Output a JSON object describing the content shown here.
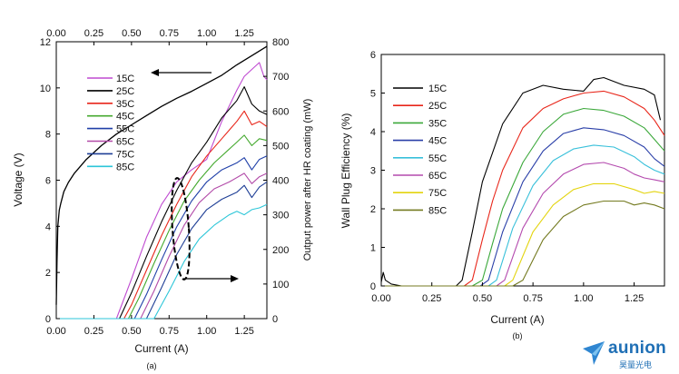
{
  "brand": {
    "logo_text": "aunion",
    "logo_sub": "昊量光电"
  },
  "colors": {
    "15C": "#bf4ad1",
    "25C": "#000000",
    "35C": "#e8261a",
    "45C": "#44a92e",
    "55C": "#1f3fa8",
    "65C": "#b24aa8",
    "75C": "#1f3f96",
    "85C": "#2cc6d8",
    "b_15C": "#000000",
    "b_25C": "#e8261a",
    "b_35C": "#3ba83a",
    "b_45C": "#2a3fa8",
    "b_55C": "#39c0da",
    "b_65C": "#b44aae",
    "b_75C": "#e3d40e",
    "b_85C": "#747a20"
  },
  "chart_data": [
    {
      "id": "a",
      "type": "line",
      "caption": "(a)",
      "xlabel": "Current (A)",
      "ylabel": "Voltage (V)",
      "y2label": "Output power after HR coating (mW)",
      "xlim": [
        0,
        1.4
      ],
      "ylim": [
        0,
        12
      ],
      "y2lim": [
        0,
        800
      ],
      "xticks": [
        "0.00",
        "0.25",
        "0.50",
        "0.75",
        "1.00",
        "1.25"
      ],
      "x_top_ticks": [
        "0.00",
        "0.25",
        "0.50",
        "0.75",
        "1.00",
        "1.25"
      ],
      "yticks": [
        "0",
        "2",
        "4",
        "6",
        "8",
        "10",
        "12"
      ],
      "y2ticks": [
        "0",
        "100",
        "200",
        "300",
        "400",
        "500",
        "600",
        "700",
        "800"
      ],
      "legend": [
        "15C",
        "25C",
        "35C",
        "45C",
        "55C",
        "65C",
        "75C",
        "85C"
      ],
      "voltage_series": {
        "name": "25C",
        "x": [
          0,
          0.005,
          0.01,
          0.02,
          0.03,
          0.05,
          0.08,
          0.12,
          0.2,
          0.3,
          0.4,
          0.5,
          0.6,
          0.7,
          0.8,
          0.9,
          1.0,
          1.1,
          1.2,
          1.3,
          1.35,
          1.4
        ],
        "y": [
          0.6,
          2.5,
          4.0,
          4.7,
          5.0,
          5.5,
          5.9,
          6.3,
          6.9,
          7.5,
          8.0,
          8.4,
          8.8,
          9.2,
          9.55,
          9.85,
          10.2,
          10.55,
          11.0,
          11.4,
          11.6,
          11.8
        ]
      },
      "power_series": [
        {
          "name": "15C",
          "x": [
            0,
            0.4,
            0.5,
            0.6,
            0.7,
            0.8,
            0.9,
            1.0,
            1.1,
            1.2,
            1.25,
            1.3,
            1.35,
            1.38,
            1.4
          ],
          "y": [
            0,
            0,
            115,
            235,
            330,
            395,
            430,
            460,
            570,
            660,
            700,
            720,
            740,
            700,
            690
          ]
        },
        {
          "name": "25C",
          "x": [
            0,
            0.42,
            0.5,
            0.6,
            0.7,
            0.8,
            0.9,
            1.0,
            1.1,
            1.2,
            1.25,
            1.3,
            1.35,
            1.4
          ],
          "y": [
            0,
            0,
            75,
            180,
            280,
            370,
            450,
            510,
            580,
            630,
            670,
            620,
            600,
            590
          ]
        },
        {
          "name": "35C",
          "x": [
            0,
            0.45,
            0.5,
            0.6,
            0.7,
            0.8,
            0.9,
            1.0,
            1.1,
            1.2,
            1.25,
            1.3,
            1.35,
            1.4
          ],
          "y": [
            0,
            0,
            40,
            140,
            240,
            330,
            410,
            470,
            520,
            570,
            600,
            560,
            570,
            555
          ]
        },
        {
          "name": "45C",
          "x": [
            0,
            0.48,
            0.55,
            0.65,
            0.75,
            0.85,
            0.95,
            1.05,
            1.15,
            1.2,
            1.25,
            1.3,
            1.35,
            1.4
          ],
          "y": [
            0,
            0,
            60,
            160,
            255,
            340,
            400,
            450,
            490,
            510,
            530,
            500,
            520,
            515
          ]
        },
        {
          "name": "55C",
          "x": [
            0,
            0.52,
            0.6,
            0.7,
            0.8,
            0.9,
            1.0,
            1.1,
            1.2,
            1.25,
            1.3,
            1.35,
            1.4
          ],
          "y": [
            0,
            0,
            70,
            170,
            265,
            340,
            395,
            430,
            450,
            465,
            430,
            460,
            470
          ]
        },
        {
          "name": "65C",
          "x": [
            0,
            0.56,
            0.65,
            0.75,
            0.85,
            0.95,
            1.05,
            1.15,
            1.25,
            1.3,
            1.35,
            1.4
          ],
          "y": [
            0,
            0,
            80,
            180,
            270,
            335,
            375,
            395,
            420,
            390,
            410,
            420
          ]
        },
        {
          "name": "75C",
          "x": [
            0,
            0.6,
            0.7,
            0.8,
            0.9,
            1.0,
            1.1,
            1.2,
            1.25,
            1.3,
            1.35,
            1.4
          ],
          "y": [
            0,
            0,
            90,
            185,
            260,
            315,
            345,
            365,
            385,
            350,
            380,
            395
          ]
        },
        {
          "name": "85C",
          "x": [
            0,
            0.65,
            0.75,
            0.85,
            0.95,
            1.05,
            1.15,
            1.2,
            1.25,
            1.3,
            1.35,
            1.4
          ],
          "y": [
            0,
            0,
            80,
            165,
            230,
            270,
            300,
            310,
            300,
            315,
            320,
            330
          ]
        }
      ]
    },
    {
      "id": "b",
      "type": "line",
      "caption": "(b)",
      "xlabel": "Current (A)",
      "ylabel": "Wall Plug Efficiency (%)",
      "xlim": [
        0,
        1.4
      ],
      "ylim": [
        0,
        6
      ],
      "xticks": [
        "0.00",
        "0.25",
        "0.50",
        "0.75",
        "1.00",
        "1.25"
      ],
      "yticks": [
        "0",
        "1",
        "2",
        "3",
        "4",
        "5",
        "6"
      ],
      "legend": [
        "15C",
        "25C",
        "35C",
        "45C",
        "55C",
        "65C",
        "75C",
        "85C"
      ],
      "series": [
        {
          "name": "15C",
          "x": [
            0,
            0.01,
            0.02,
            0.05,
            0.1,
            0.37,
            0.4,
            0.45,
            0.5,
            0.6,
            0.7,
            0.8,
            0.9,
            1.0,
            1.05,
            1.1,
            1.2,
            1.3,
            1.35,
            1.38
          ],
          "y": [
            0.1,
            0.35,
            0.15,
            0.05,
            0.0,
            0.0,
            0.15,
            1.4,
            2.7,
            4.2,
            5.0,
            5.2,
            5.1,
            5.05,
            5.35,
            5.4,
            5.2,
            5.1,
            4.95,
            4.3
          ]
        },
        {
          "name": "25C",
          "x": [
            0,
            0.41,
            0.45,
            0.5,
            0.55,
            0.6,
            0.7,
            0.8,
            0.9,
            1.0,
            1.1,
            1.2,
            1.3,
            1.35,
            1.4
          ],
          "y": [
            0,
            0,
            0.15,
            1.2,
            2.2,
            3.0,
            4.1,
            4.6,
            4.85,
            5.0,
            5.05,
            4.9,
            4.6,
            4.3,
            3.9
          ]
        },
        {
          "name": "35C",
          "x": [
            0,
            0.45,
            0.5,
            0.55,
            0.6,
            0.7,
            0.8,
            0.9,
            1.0,
            1.1,
            1.2,
            1.3,
            1.35,
            1.4
          ],
          "y": [
            0,
            0,
            0.15,
            1.1,
            2.0,
            3.2,
            4.0,
            4.45,
            4.6,
            4.55,
            4.4,
            4.1,
            3.8,
            3.5
          ]
        },
        {
          "name": "45C",
          "x": [
            0,
            0.49,
            0.53,
            0.6,
            0.7,
            0.8,
            0.9,
            1.0,
            1.1,
            1.2,
            1.3,
            1.35,
            1.4
          ],
          "y": [
            0,
            0,
            0.15,
            1.4,
            2.7,
            3.5,
            3.95,
            4.1,
            4.05,
            3.9,
            3.6,
            3.3,
            3.1
          ]
        },
        {
          "name": "55C",
          "x": [
            0,
            0.53,
            0.57,
            0.65,
            0.75,
            0.85,
            0.95,
            1.05,
            1.15,
            1.25,
            1.3,
            1.35,
            1.4
          ],
          "y": [
            0,
            0,
            0.15,
            1.5,
            2.6,
            3.25,
            3.55,
            3.65,
            3.6,
            3.35,
            3.15,
            3.0,
            2.9
          ]
        },
        {
          "name": "65C",
          "x": [
            0,
            0.57,
            0.61,
            0.7,
            0.8,
            0.9,
            1.0,
            1.1,
            1.2,
            1.25,
            1.3,
            1.35,
            1.4
          ],
          "y": [
            0,
            0,
            0.15,
            1.5,
            2.4,
            2.9,
            3.15,
            3.2,
            3.05,
            2.9,
            2.8,
            2.75,
            2.7
          ]
        },
        {
          "name": "75C",
          "x": [
            0,
            0.61,
            0.65,
            0.75,
            0.85,
            0.95,
            1.05,
            1.15,
            1.25,
            1.3,
            1.35,
            1.4
          ],
          "y": [
            0,
            0,
            0.15,
            1.4,
            2.1,
            2.5,
            2.65,
            2.65,
            2.5,
            2.4,
            2.45,
            2.4
          ]
        },
        {
          "name": "85C",
          "x": [
            0,
            0.65,
            0.7,
            0.8,
            0.9,
            1.0,
            1.1,
            1.2,
            1.25,
            1.3,
            1.35,
            1.4
          ],
          "y": [
            0,
            0,
            0.15,
            1.2,
            1.8,
            2.1,
            2.2,
            2.2,
            2.1,
            2.15,
            2.1,
            2.0
          ]
        }
      ]
    }
  ]
}
